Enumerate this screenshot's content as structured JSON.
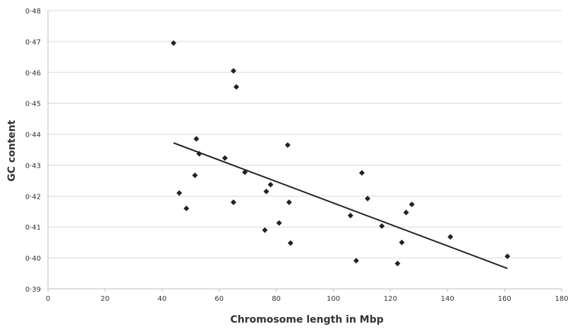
{
  "chart_data": {
    "type": "scatter",
    "xlabel": "Chromosome length in Mbp",
    "ylabel": "GC content",
    "xlim": [
      0,
      180
    ],
    "ylim": [
      0.39,
      0.48
    ],
    "x_ticks": [
      0,
      20,
      40,
      60,
      80,
      100,
      120,
      140,
      160,
      180
    ],
    "x_tick_labels": [
      "0",
      "20",
      "40",
      "60",
      "80",
      "100",
      "120",
      "140",
      "160",
      "180"
    ],
    "y_ticks": [
      0.39,
      0.4,
      0.41,
      0.42,
      0.43,
      0.44,
      0.45,
      0.46,
      0.47,
      0.48
    ],
    "y_tick_labels": [
      "0·39",
      "0·40",
      "0·41",
      "0·42",
      "0·43",
      "0·44",
      "0·45",
      "0·46",
      "0·47",
      "0·48"
    ],
    "grid": "horizontal",
    "series": [
      {
        "marker": "diamond",
        "color": "#222222",
        "points": [
          [
            44,
            0.4695
          ],
          [
            46,
            0.421
          ],
          [
            48.5,
            0.416
          ],
          [
            52,
            0.4385
          ],
          [
            51.5,
            0.4267
          ],
          [
            53,
            0.4337
          ],
          [
            62,
            0.4323
          ],
          [
            65,
            0.4605
          ],
          [
            66,
            0.4553
          ],
          [
            65,
            0.418
          ],
          [
            69,
            0.4277
          ],
          [
            76,
            0.409
          ],
          [
            76.5,
            0.4215
          ],
          [
            78,
            0.4237
          ],
          [
            81,
            0.4113
          ],
          [
            84,
            0.4365
          ],
          [
            84.5,
            0.418
          ],
          [
            85,
            0.4048
          ],
          [
            106,
            0.4137
          ],
          [
            108,
            0.3991
          ],
          [
            110,
            0.4275
          ],
          [
            112,
            0.4192
          ],
          [
            117,
            0.4103
          ],
          [
            122.5,
            0.3982
          ],
          [
            124,
            0.405
          ],
          [
            125.5,
            0.4147
          ],
          [
            127.5,
            0.4173
          ],
          [
            141,
            0.4068
          ],
          [
            161,
            0.4005
          ]
        ]
      }
    ],
    "trendline": {
      "x": [
        44,
        161
      ],
      "y": [
        0.4372,
        0.3966
      ]
    }
  }
}
